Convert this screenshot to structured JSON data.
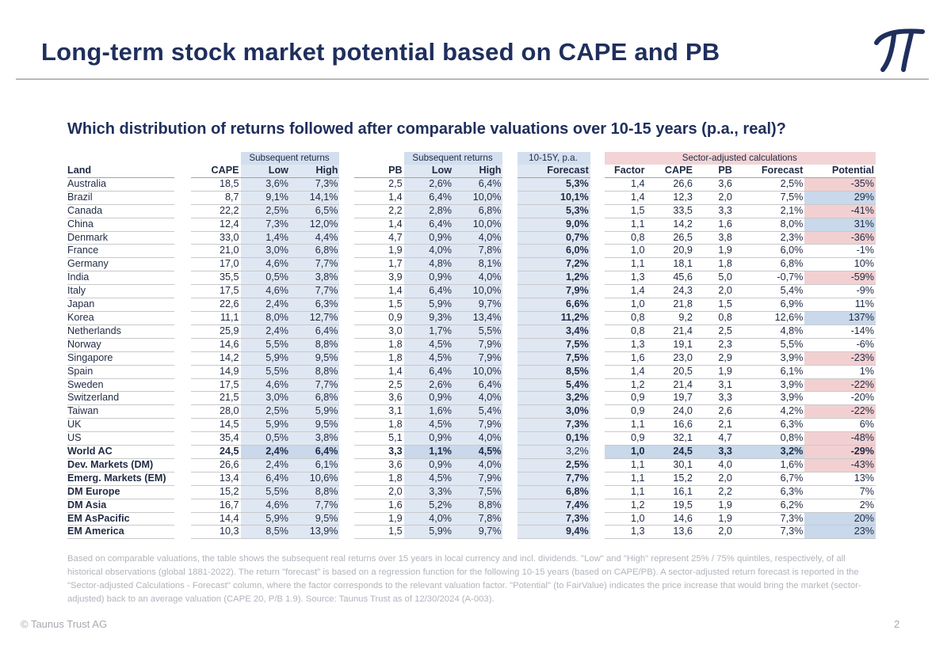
{
  "header": {
    "title": "Long-term stock market potential based on CAPE and PB",
    "logo_icon": "taunus-pi-logo-icon"
  },
  "subtitle": "Which distribution of returns followed after comparable valuations over 10-15 years (p.a., real)?",
  "table": {
    "group_headers": {
      "subsequent_1": "Subsequent returns",
      "subsequent_2": "Subsequent returns",
      "forecast_group": "10-15Y, p.a.",
      "sector_group": "Sector-adjusted calculations"
    },
    "columns": [
      "Land",
      "CAPE",
      "Low",
      "High",
      "PB",
      "Low",
      "High",
      "Forecast",
      "Factor",
      "CAPE",
      "PB",
      "Forecast",
      "Potential"
    ],
    "rows": [
      {
        "land": "Australia",
        "v": [
          "18,5",
          "3,6%",
          "7,3%",
          "2,5",
          "2,6%",
          "6,4%",
          "5,3%",
          "1,4",
          "26,6",
          "3,6",
          "2,5%",
          "-35%"
        ],
        "pot": "neg",
        "bold": false
      },
      {
        "land": "Brazil",
        "v": [
          "8,7",
          "9,1%",
          "14,1%",
          "1,4",
          "6,4%",
          "10,0%",
          "10,1%",
          "1,4",
          "12,3",
          "2,0",
          "7,5%",
          "29%"
        ],
        "pot": "pos",
        "bold": false
      },
      {
        "land": "Canada",
        "v": [
          "22,2",
          "2,5%",
          "6,5%",
          "2,2",
          "2,8%",
          "6,8%",
          "5,3%",
          "1,5",
          "33,5",
          "3,3",
          "2,1%",
          "-41%"
        ],
        "pot": "neg",
        "bold": false
      },
      {
        "land": "China",
        "v": [
          "12,4",
          "7,3%",
          "12,0%",
          "1,4",
          "6,4%",
          "10,0%",
          "9,0%",
          "1,1",
          "14,2",
          "1,6",
          "8,0%",
          "31%"
        ],
        "pot": "pos",
        "bold": false
      },
      {
        "land": "Denmark",
        "v": [
          "33,0",
          "1,4%",
          "4,4%",
          "4,7",
          "0,9%",
          "4,0%",
          "0,7%",
          "0,8",
          "26,5",
          "3,8",
          "2,3%",
          "-36%"
        ],
        "pot": "neg",
        "bold": false
      },
      {
        "land": "France",
        "v": [
          "21,0",
          "3,0%",
          "6,8%",
          "1,9",
          "4,0%",
          "7,8%",
          "6,0%",
          "1,0",
          "20,9",
          "1,9",
          "6,0%",
          "-1%"
        ],
        "pot": "",
        "bold": false
      },
      {
        "land": "Germany",
        "v": [
          "17,0",
          "4,6%",
          "7,7%",
          "1,7",
          "4,8%",
          "8,1%",
          "7,2%",
          "1,1",
          "18,1",
          "1,8",
          "6,8%",
          "10%"
        ],
        "pot": "",
        "bold": false
      },
      {
        "land": "India",
        "v": [
          "35,5",
          "0,5%",
          "3,8%",
          "3,9",
          "0,9%",
          "4,0%",
          "1,2%",
          "1,3",
          "45,6",
          "5,0",
          "-0,7%",
          "-59%"
        ],
        "pot": "neg",
        "bold": false
      },
      {
        "land": "Italy",
        "v": [
          "17,5",
          "4,6%",
          "7,7%",
          "1,4",
          "6,4%",
          "10,0%",
          "7,9%",
          "1,4",
          "24,3",
          "2,0",
          "5,4%",
          "-9%"
        ],
        "pot": "",
        "bold": false
      },
      {
        "land": "Japan",
        "v": [
          "22,6",
          "2,4%",
          "6,3%",
          "1,5",
          "5,9%",
          "9,7%",
          "6,6%",
          "1,0",
          "21,8",
          "1,5",
          "6,9%",
          "11%"
        ],
        "pot": "",
        "bold": false
      },
      {
        "land": "Korea",
        "v": [
          "11,1",
          "8,0%",
          "12,7%",
          "0,9",
          "9,3%",
          "13,4%",
          "11,2%",
          "0,8",
          "9,2",
          "0,8",
          "12,6%",
          "137%"
        ],
        "pot": "pos",
        "bold": false
      },
      {
        "land": "Netherlands",
        "v": [
          "25,9",
          "2,4%",
          "6,4%",
          "3,0",
          "1,7%",
          "5,5%",
          "3,4%",
          "0,8",
          "21,4",
          "2,5",
          "4,8%",
          "-14%"
        ],
        "pot": "",
        "bold": false
      },
      {
        "land": "Norway",
        "v": [
          "14,6",
          "5,5%",
          "8,8%",
          "1,8",
          "4,5%",
          "7,9%",
          "7,5%",
          "1,3",
          "19,1",
          "2,3",
          "5,5%",
          "-6%"
        ],
        "pot": "",
        "bold": false
      },
      {
        "land": "Singapore",
        "v": [
          "14,2",
          "5,9%",
          "9,5%",
          "1,8",
          "4,5%",
          "7,9%",
          "7,5%",
          "1,6",
          "23,0",
          "2,9",
          "3,9%",
          "-23%"
        ],
        "pot": "neg",
        "bold": false
      },
      {
        "land": "Spain",
        "v": [
          "14,9",
          "5,5%",
          "8,8%",
          "1,4",
          "6,4%",
          "10,0%",
          "8,5%",
          "1,4",
          "20,5",
          "1,9",
          "6,1%",
          "1%"
        ],
        "pot": "",
        "bold": false
      },
      {
        "land": "Sweden",
        "v": [
          "17,5",
          "4,6%",
          "7,7%",
          "2,5",
          "2,6%",
          "6,4%",
          "5,4%",
          "1,2",
          "21,4",
          "3,1",
          "3,9%",
          "-22%"
        ],
        "pot": "neg",
        "bold": false
      },
      {
        "land": "Switzerland",
        "v": [
          "21,5",
          "3,0%",
          "6,8%",
          "3,6",
          "0,9%",
          "4,0%",
          "3,2%",
          "0,9",
          "19,7",
          "3,3",
          "3,9%",
          "-20%"
        ],
        "pot": "",
        "bold": false
      },
      {
        "land": "Taiwan",
        "v": [
          "28,0",
          "2,5%",
          "5,9%",
          "3,1",
          "1,6%",
          "5,4%",
          "3,0%",
          "0,9",
          "24,0",
          "2,6",
          "4,2%",
          "-22%"
        ],
        "pot": "neg",
        "bold": false
      },
      {
        "land": "UK",
        "v": [
          "14,5",
          "5,9%",
          "9,5%",
          "1,8",
          "4,5%",
          "7,9%",
          "7,3%",
          "1,1",
          "16,6",
          "2,1",
          "6,3%",
          "6%"
        ],
        "pot": "",
        "bold": false
      },
      {
        "land": "US",
        "v": [
          "35,4",
          "0,5%",
          "3,8%",
          "5,1",
          "0,9%",
          "4,0%",
          "0,1%",
          "0,9",
          "32,1",
          "4,7",
          "0,8%",
          "-48%"
        ],
        "pot": "neg",
        "bold": false
      },
      {
        "land": "World AC",
        "v": [
          "24,5",
          "2,4%",
          "6,4%",
          "3,3",
          "1,1%",
          "4,5%",
          "3,2%",
          "1,0",
          "24,5",
          "3,3",
          "3,2%",
          "-29%"
        ],
        "pot": "neg",
        "bold": true
      },
      {
        "land": "Dev. Markets (DM)",
        "v": [
          "26,6",
          "2,4%",
          "6,1%",
          "3,6",
          "0,9%",
          "4,0%",
          "2,5%",
          "1,1",
          "30,1",
          "4,0",
          "1,6%",
          "-43%"
        ],
        "pot": "neg",
        "bold": false
      },
      {
        "land": "Emerg. Markets (EM)",
        "v": [
          "13,4",
          "6,4%",
          "10,6%",
          "1,8",
          "4,5%",
          "7,9%",
          "7,7%",
          "1,1",
          "15,2",
          "2,0",
          "6,7%",
          "13%"
        ],
        "pot": "",
        "bold": false
      },
      {
        "land": "DM Europe",
        "v": [
          "15,2",
          "5,5%",
          "8,8%",
          "2,0",
          "3,3%",
          "7,5%",
          "6,8%",
          "1,1",
          "16,1",
          "2,2",
          "6,3%",
          "7%"
        ],
        "pot": "",
        "bold": false
      },
      {
        "land": "DM Asia",
        "v": [
          "16,7",
          "4,6%",
          "7,7%",
          "1,6",
          "5,2%",
          "8,8%",
          "7,4%",
          "1,2",
          "19,5",
          "1,9",
          "6,2%",
          "2%"
        ],
        "pot": "",
        "bold": false
      },
      {
        "land": "EM AsPacific",
        "v": [
          "14,4",
          "5,9%",
          "9,5%",
          "1,9",
          "4,0%",
          "7,8%",
          "7,3%",
          "1,0",
          "14,6",
          "1,9",
          "7,3%",
          "20%"
        ],
        "pot": "pos",
        "bold": false
      },
      {
        "land": "EM America",
        "v": [
          "10,3",
          "8,5%",
          "13,9%",
          "1,5",
          "5,9%",
          "9,7%",
          "9,4%",
          "1,3",
          "13,6",
          "2,0",
          "7,3%",
          "23%"
        ],
        "pot": "pos",
        "bold": false
      }
    ]
  },
  "footnote": "Based on comparable valuations, the table shows the subsequent real returns over 15 years in local currency and incl. dividends. \"Low\" and \"High\" represent 25% / 75% quintiles, respectively, of all historical observations (global 1881-2022). The return \"forecast\" is based on a regression function for the following 10-15 years (based on CAPE/PB). A sector-adjusted return forecast is reported in the \"Sector-adjusted Calculations - Forecast\" column, where the factor corresponds to the relevant valuation factor. \"Potential\" (to FairValue) indicates the price increase that would bring the market (sector-adjusted) back to an average valuation (CAPE 20, P/B 1.9). Source: Taunus Trust as of 12/30/2024 (A-003).",
  "footer": {
    "copyright": "© Taunus Trust AG",
    "page_number": "2"
  }
}
